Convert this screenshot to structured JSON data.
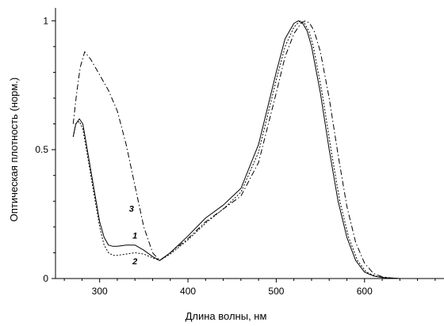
{
  "chart_data": {
    "type": "line",
    "title": "",
    "xlabel": "Длина волны, нм",
    "ylabel": "Оптическая плотность (норм.)",
    "xlim": [
      250,
      690
    ],
    "ylim": [
      0,
      1.05
    ],
    "grid": false,
    "x_ticks": [
      300,
      400,
      500,
      600
    ],
    "y_ticks": [
      {
        "value": 0,
        "label": "0"
      },
      {
        "value": 0.5,
        "label": "0.5"
      },
      {
        "value": 1,
        "label": "1"
      }
    ],
    "series": [
      {
        "name": "1",
        "style": "solid",
        "label_at": [
          340,
          0.155
        ],
        "x": [
          270,
          273,
          277,
          281,
          285,
          290,
          295,
          300,
          305,
          310,
          315,
          320,
          330,
          340,
          350,
          360,
          368,
          380,
          400,
          420,
          440,
          460,
          480,
          500,
          510,
          520,
          525,
          530,
          535,
          540,
          550,
          560,
          570,
          580,
          590,
          600,
          610,
          620,
          640,
          680
        ],
        "y": [
          0.55,
          0.6,
          0.62,
          0.6,
          0.52,
          0.42,
          0.32,
          0.22,
          0.16,
          0.13,
          0.125,
          0.125,
          0.13,
          0.13,
          0.11,
          0.085,
          0.07,
          0.1,
          0.165,
          0.235,
          0.285,
          0.35,
          0.52,
          0.8,
          0.93,
          0.99,
          1.0,
          0.99,
          0.96,
          0.9,
          0.72,
          0.5,
          0.3,
          0.16,
          0.07,
          0.025,
          0.01,
          0.004,
          0.0,
          0.0
        ]
      },
      {
        "name": "2",
        "style": "dotted",
        "label_at": [
          340,
          0.055
        ],
        "x": [
          270,
          273,
          277,
          281,
          285,
          290,
          295,
          300,
          305,
          310,
          315,
          320,
          330,
          340,
          350,
          360,
          368,
          380,
          400,
          420,
          440,
          460,
          480,
          500,
          510,
          520,
          527,
          532,
          537,
          542,
          552,
          562,
          572,
          582,
          592,
          602,
          612,
          622,
          640,
          680
        ],
        "y": [
          0.55,
          0.6,
          0.61,
          0.58,
          0.5,
          0.4,
          0.3,
          0.2,
          0.13,
          0.1,
          0.09,
          0.09,
          0.095,
          0.1,
          0.095,
          0.08,
          0.07,
          0.095,
          0.15,
          0.215,
          0.27,
          0.335,
          0.49,
          0.77,
          0.9,
          0.975,
          1.0,
          0.99,
          0.96,
          0.9,
          0.72,
          0.5,
          0.3,
          0.16,
          0.07,
          0.025,
          0.01,
          0.004,
          0.0,
          0.0
        ]
      },
      {
        "name": "3",
        "style": "dashdot",
        "label_at": [
          336,
          0.26
        ],
        "x": [
          270,
          274,
          278,
          283,
          290,
          300,
          310,
          320,
          330,
          340,
          350,
          360,
          368,
          380,
          400,
          420,
          440,
          460,
          480,
          500,
          510,
          520,
          528,
          533,
          538,
          543,
          550,
          560,
          570,
          580,
          590,
          600,
          610,
          620,
          630,
          640,
          660,
          680
        ],
        "y": [
          0.6,
          0.72,
          0.82,
          0.88,
          0.85,
          0.79,
          0.73,
          0.65,
          0.52,
          0.36,
          0.2,
          0.1,
          0.07,
          0.1,
          0.155,
          0.22,
          0.27,
          0.32,
          0.45,
          0.72,
          0.86,
          0.95,
          0.99,
          1.0,
          0.99,
          0.96,
          0.88,
          0.7,
          0.48,
          0.28,
          0.14,
          0.06,
          0.02,
          0.007,
          0.002,
          0.0,
          0.0,
          0.0
        ]
      }
    ]
  }
}
